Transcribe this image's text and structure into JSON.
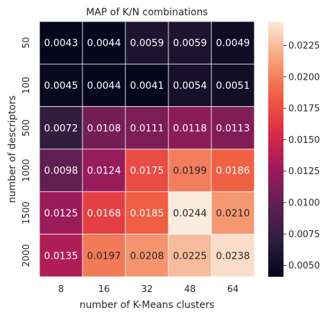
{
  "chart_data": {
    "type": "heatmap",
    "title": "MAP of K/N combinations",
    "xlabel": "number of K-Means clusters",
    "ylabel": "number of descriptors",
    "x_categories": [
      "8",
      "16",
      "32",
      "48",
      "64"
    ],
    "y_categories": [
      "50",
      "100",
      "500",
      "1000",
      "1500",
      "2000"
    ],
    "values": [
      [
        0.0043,
        0.0044,
        0.0059,
        0.0059,
        0.0049
      ],
      [
        0.0045,
        0.0044,
        0.0041,
        0.0054,
        0.0051
      ],
      [
        0.0072,
        0.0108,
        0.0111,
        0.0118,
        0.0113
      ],
      [
        0.0098,
        0.0124,
        0.0175,
        0.0199,
        0.0186
      ],
      [
        0.0125,
        0.0168,
        0.0185,
        0.0244,
        0.021
      ],
      [
        0.0135,
        0.0197,
        0.0208,
        0.0225,
        0.0238
      ]
    ],
    "cell_labels": [
      [
        "0.0043",
        "0.0044",
        "0.0059",
        "0.0059",
        "0.0049"
      ],
      [
        "0.0045",
        "0.0044",
        "0.0041",
        "0.0054",
        "0.0051"
      ],
      [
        "0.0072",
        "0.0108",
        "0.0111",
        "0.0118",
        "0.0113"
      ],
      [
        "0.0098",
        "0.0124",
        "0.0175",
        "0.0199",
        "0.0186"
      ],
      [
        "0.0125",
        "0.0168",
        "0.0185",
        "0.0244",
        "0.0210"
      ],
      [
        "0.0135",
        "0.0197",
        "0.0208",
        "0.0225",
        "0.0238"
      ]
    ],
    "colorbar": {
      "vmin": 0.0041,
      "vmax": 0.0244,
      "ticks": [
        0.005,
        0.0075,
        0.01,
        0.0125,
        0.015,
        0.0175,
        0.02,
        0.0225
      ],
      "tick_labels": [
        "0.0050",
        "0.0075",
        "0.0100",
        "0.0125",
        "0.0150",
        "0.0175",
        "0.0200",
        "0.0225"
      ],
      "colormap": "rocket",
      "colormap_stops": [
        "#03051a",
        "#2d1e3e",
        "#611f53",
        "#a11a5b",
        "#dd2c45",
        "#f06043",
        "#f6a47c",
        "#faebdd"
      ]
    }
  }
}
